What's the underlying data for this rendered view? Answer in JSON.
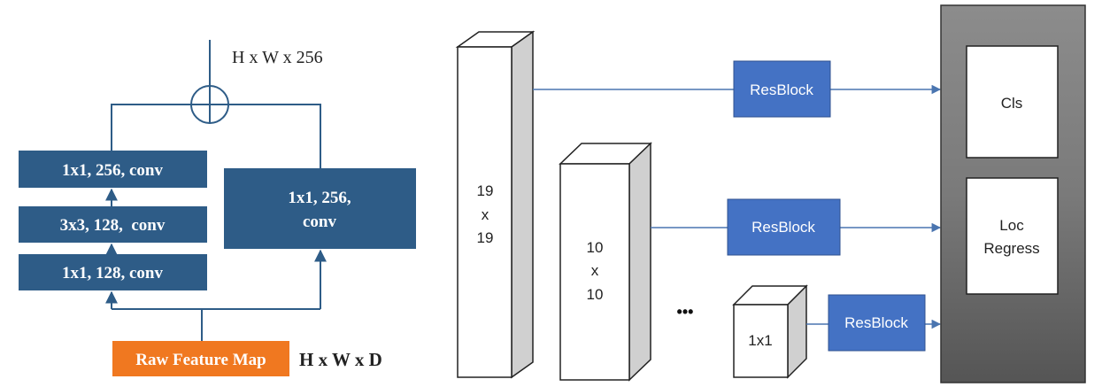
{
  "left_panel": {
    "output_dim": "H x W x 256",
    "input_dim": "H x W x D",
    "input_label": "Raw Feature Map",
    "branch_main": [
      "1x1, 256, conv",
      "3x3, 128,  conv",
      "1x1, 128, conv"
    ],
    "branch_shortcut": [
      "1x1, 256,",
      "conv"
    ]
  },
  "right_panel": {
    "feature_maps": [
      {
        "lines": [
          "19",
          "x",
          "19"
        ]
      },
      {
        "lines": [
          "10",
          "x",
          "10"
        ]
      },
      {
        "lines": [
          "1x1"
        ]
      }
    ],
    "ellipsis": "•••",
    "resblock_label": "ResBlock",
    "head": {
      "cls_label": "Cls",
      "loc_lines": [
        "Loc",
        "Regress"
      ]
    }
  },
  "colors": {
    "dark_blue_box": "#2e5c87",
    "resblock_blue": "#4472c4",
    "line_blue": "#4a75b0",
    "orange": "#f07820",
    "head_gray_light": "#9a9a9a",
    "head_gray_dark": "#5a5a5a"
  }
}
